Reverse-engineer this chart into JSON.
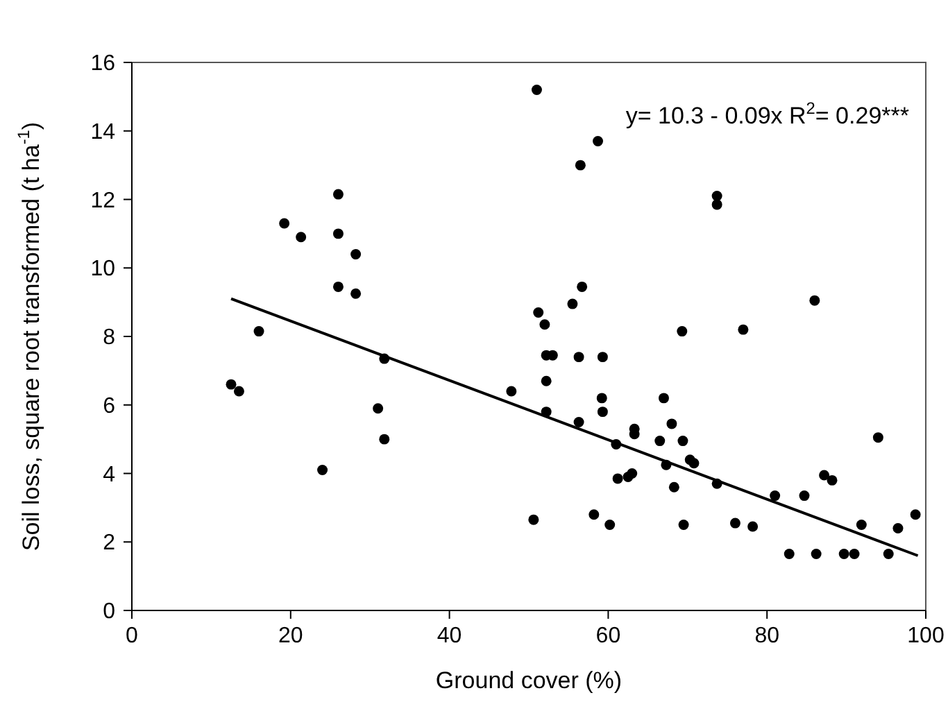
{
  "chart_data": {
    "type": "scatter",
    "xlabel": "Ground cover (%)",
    "ylabel": "Soil loss, square root transformed (t ha$^{-1}$)",
    "xlim": [
      0,
      100
    ],
    "ylim": [
      0,
      16
    ],
    "xticks": [
      0,
      20,
      40,
      60,
      80,
      100
    ],
    "yticks": [
      0,
      2,
      4,
      6,
      8,
      10,
      12,
      14,
      16
    ],
    "grid": false,
    "marker": "circle",
    "annotations": [
      "y= 10.3 - 0.09x  R$^{2}$= 0.29***"
    ],
    "series": [
      {
        "color": "#000000",
        "x": [
          12.5,
          13.5,
          16,
          19.2,
          21.3,
          24,
          26,
          26,
          26,
          28.2,
          28.2,
          31,
          31.8,
          31.8,
          47.8,
          50.6,
          51,
          51.2,
          52,
          52.2,
          53,
          52.2,
          52.2,
          55.5,
          56.5,
          56.7,
          56.3,
          56.3,
          58.2,
          58.7,
          59.2,
          59.3,
          59.3,
          60.2,
          61,
          61.2,
          62.5,
          63,
          63.3,
          63.3,
          66.5,
          67,
          67.3,
          68,
          68.3,
          69.3,
          69.4,
          69.5,
          70.3,
          70.8,
          73.7,
          73.7,
          73.7,
          76,
          77,
          78.2,
          81,
          82.8,
          84.7,
          86,
          86.2,
          87.2,
          88.2,
          89.7,
          91,
          91.9,
          94,
          95.3,
          96.5,
          98.7
        ],
        "values": [
          6.6,
          6.4,
          8.15,
          11.3,
          10.9,
          4.1,
          12.15,
          11.0,
          9.45,
          10.4,
          9.25,
          5.9,
          7.35,
          5.0,
          6.4,
          2.65,
          15.2,
          8.7,
          8.35,
          7.45,
          7.45,
          6.7,
          5.8,
          8.95,
          13.0,
          9.45,
          7.4,
          5.5,
          2.8,
          13.7,
          6.2,
          7.4,
          5.8,
          2.5,
          4.85,
          3.85,
          3.9,
          4.0,
          5.3,
          5.15,
          4.95,
          6.2,
          4.25,
          5.45,
          3.6,
          8.15,
          4.95,
          2.5,
          4.4,
          4.3,
          12.1,
          11.85,
          3.7,
          2.55,
          8.2,
          2.45,
          3.35,
          1.65,
          3.35,
          9.05,
          1.65,
          3.95,
          3.8,
          1.65,
          1.65,
          2.5,
          5.05,
          1.65,
          2.4,
          2.8
        ]
      },
      {
        "type": "line",
        "color": "#000000",
        "line_style": "solid",
        "marker": "none",
        "x": [
          12.5,
          99
        ],
        "values": [
          9.1,
          1.6
        ]
      }
    ]
  }
}
